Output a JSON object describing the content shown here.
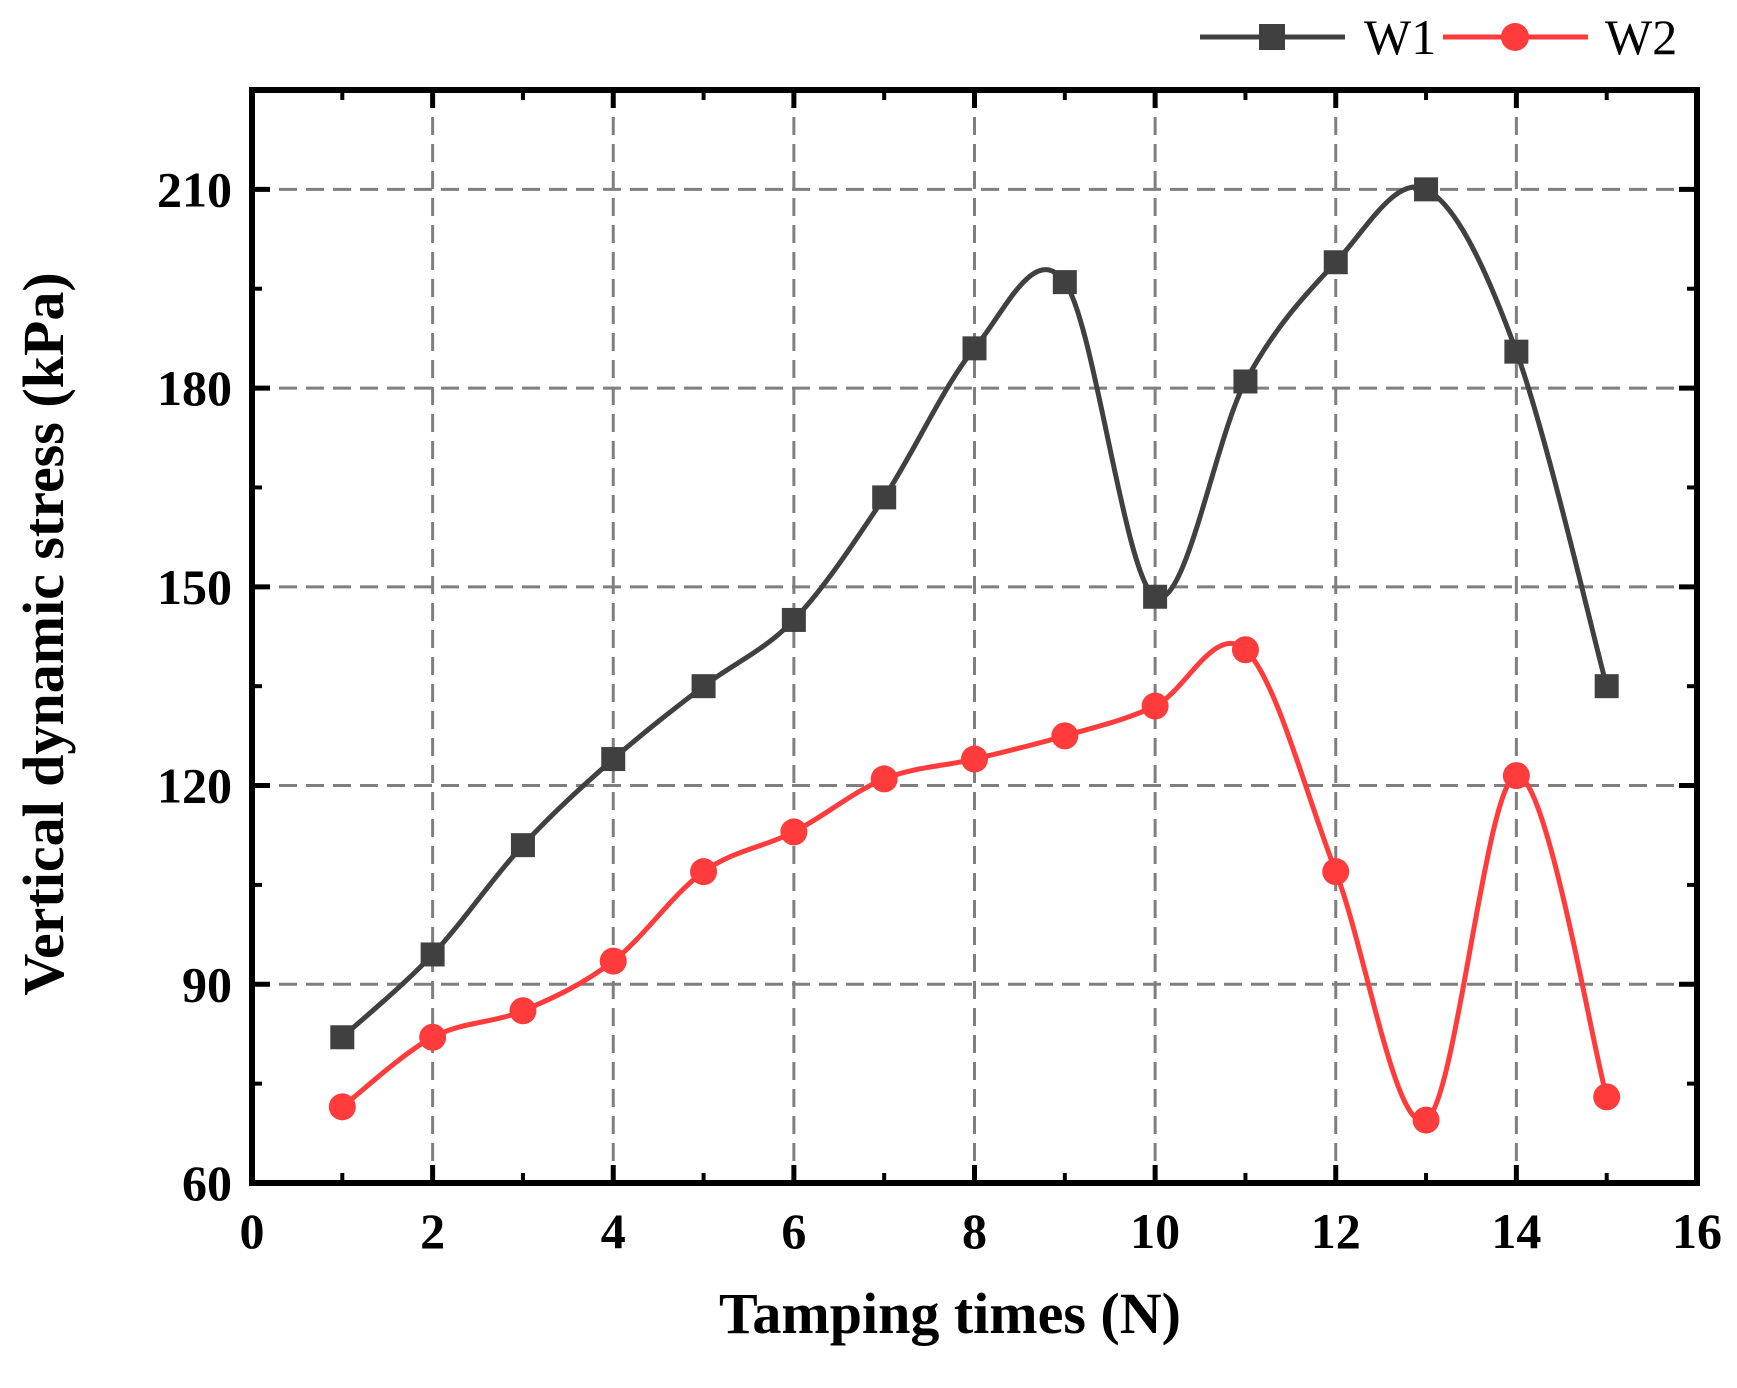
{
  "chart_data": {
    "type": "line",
    "title": "",
    "xlabel": "Tamping times (N)",
    "ylabel": "Vertical dynamic stress (kPa)",
    "xlim": [
      0,
      16
    ],
    "ylim": [
      60,
      225
    ],
    "xticks": [
      0,
      2,
      4,
      6,
      8,
      10,
      12,
      14,
      16
    ],
    "yticks": [
      60,
      90,
      120,
      150,
      180,
      210
    ],
    "x_tick_labels": [
      "0",
      "2",
      "4",
      "6",
      "8",
      "10",
      "12",
      "14",
      "16"
    ],
    "y_tick_labels": [
      "60",
      "90",
      "120",
      "150",
      "180",
      "210"
    ],
    "grid": true,
    "legend_position": "top-right",
    "x": [
      1,
      2,
      3,
      4,
      5,
      6,
      7,
      8,
      9,
      10,
      11,
      12,
      13,
      14,
      15
    ],
    "series": [
      {
        "name": "W1",
        "color": "#404040",
        "marker": "square",
        "values": [
          82,
          94.5,
          111,
          124,
          135,
          145,
          163.5,
          186,
          196,
          148.5,
          181,
          199,
          210,
          185.5,
          135
        ]
      },
      {
        "name": "W2",
        "color": "#ff3b3b",
        "marker": "circle",
        "values": [
          71.5,
          82,
          86,
          93.5,
          107,
          113,
          121,
          124,
          127.5,
          132,
          140.5,
          107,
          69.5,
          121.5,
          73
        ]
      }
    ]
  }
}
